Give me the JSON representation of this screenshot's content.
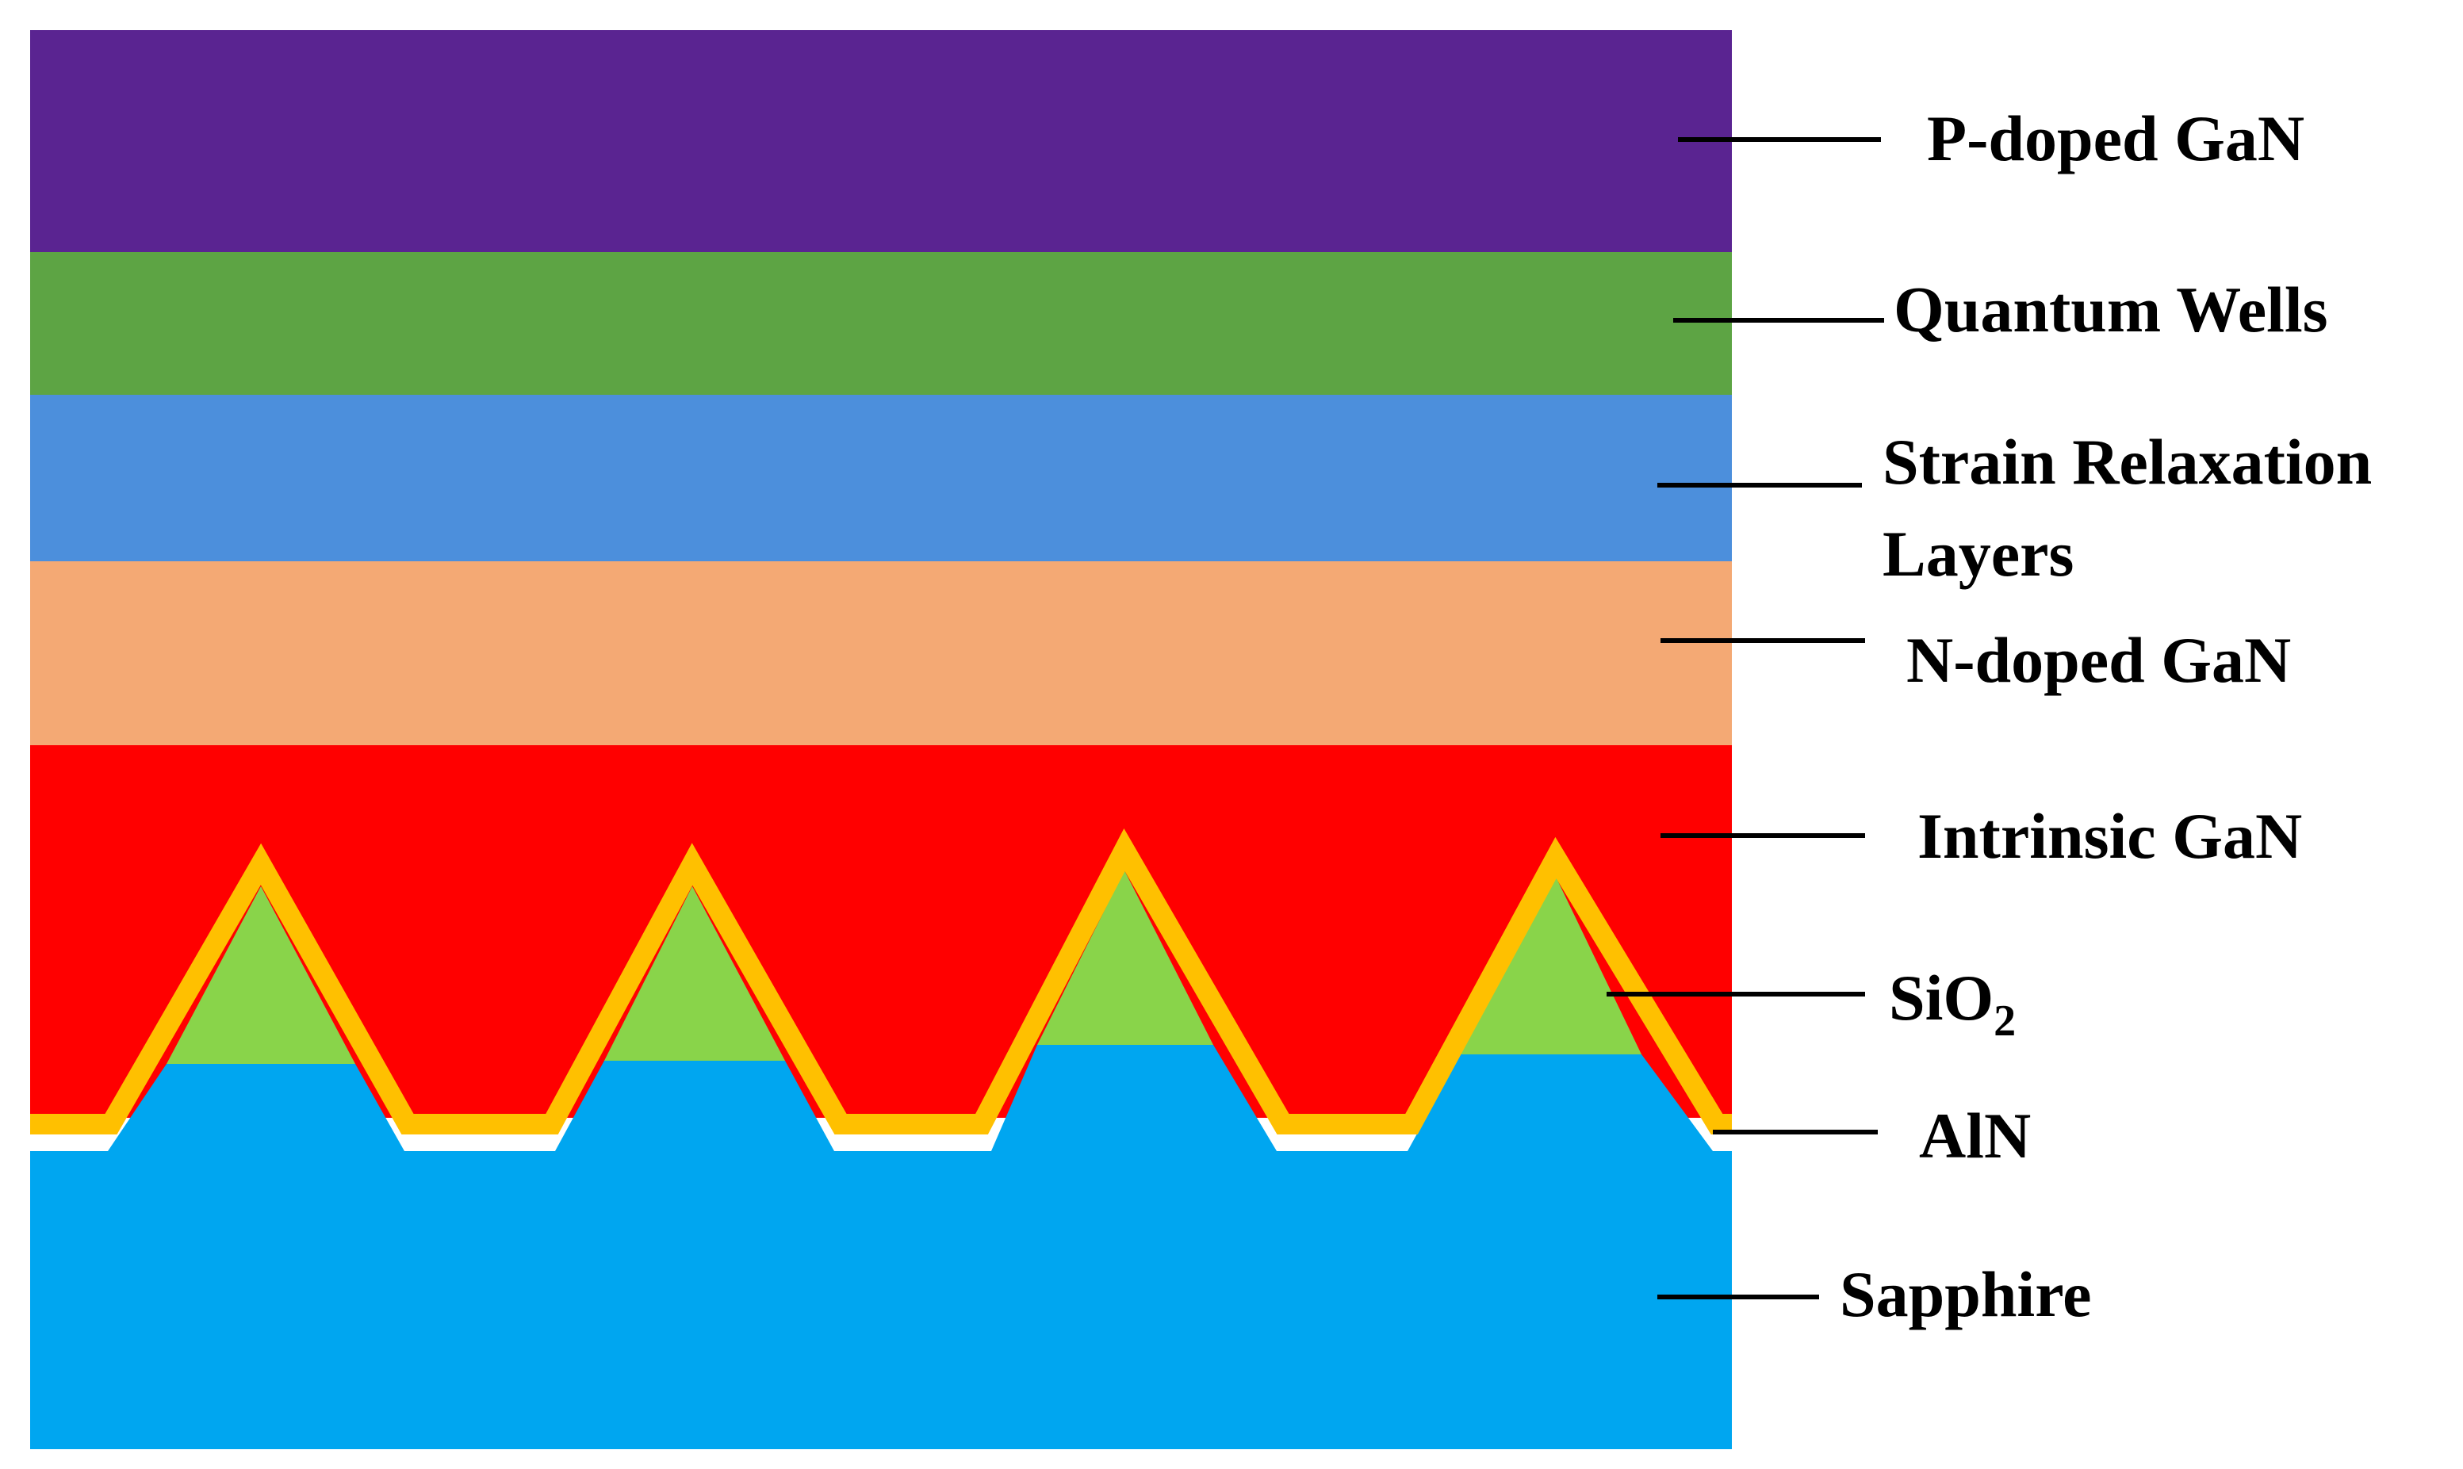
{
  "layers": {
    "p_doped_gan": {
      "label": "P-doped GaN",
      "color": "#5A2491"
    },
    "quantum_wells": {
      "label": "Quantum Wells",
      "color": "#5DA444"
    },
    "strain_relaxation": {
      "label_line1": "Strain Relaxation",
      "label_line2": "Layers",
      "color": "#4C8FDC"
    },
    "n_doped_gan": {
      "label": "N-doped GaN",
      "color": "#F4A974"
    },
    "intrinsic_gan": {
      "label": "Intrinsic GaN",
      "color": "#FF0000"
    },
    "sio2": {
      "label_main": "SiO",
      "label_subscript": "2",
      "color": "#89D44A"
    },
    "aln": {
      "label": "AlN",
      "color": "#FFC000"
    },
    "sapphire": {
      "label": "Sapphire",
      "color": "#00A6F0"
    }
  }
}
